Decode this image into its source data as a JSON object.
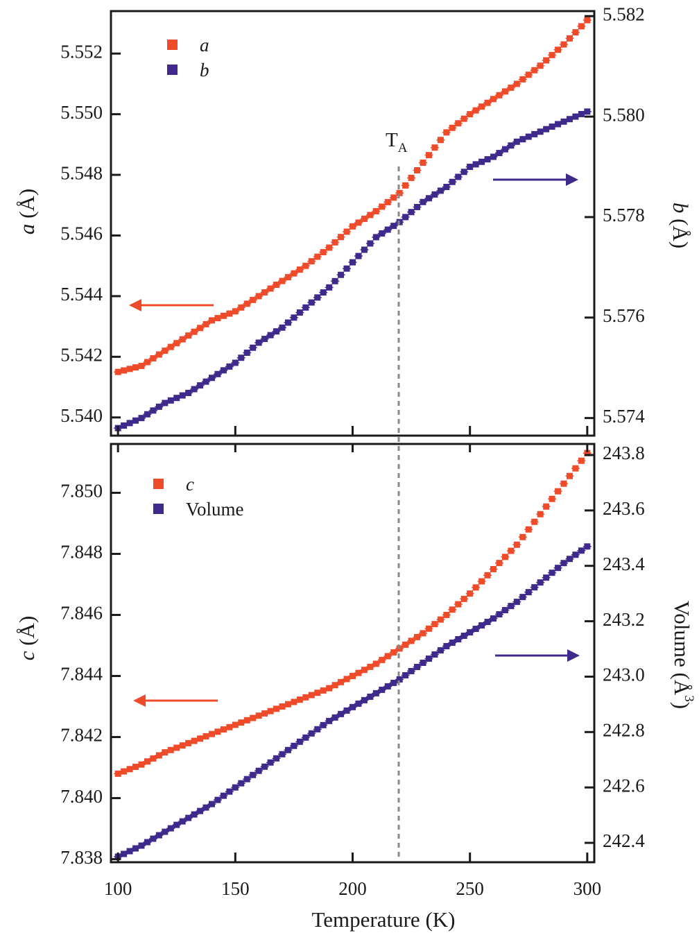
{
  "colors": {
    "a": "#ee4b2b",
    "b": "#3f2a8c",
    "frame": "#1a1a1a",
    "guide": "#888888"
  },
  "shared_x": {
    "label": "Temperature (K)",
    "range": [
      97,
      303
    ],
    "ticks": [
      100,
      150,
      200,
      250,
      300
    ],
    "tick_labels": [
      "100",
      "150",
      "200",
      "250",
      "300"
    ]
  },
  "transition": {
    "label_main": "T",
    "label_sub": "A",
    "x": 220
  },
  "chart_data": [
    {
      "type": "scatter",
      "panel": "top",
      "x": [
        100,
        110,
        120,
        130,
        140,
        150,
        160,
        170,
        180,
        190,
        200,
        210,
        220,
        230,
        240,
        250,
        260,
        270,
        280,
        290,
        300
      ],
      "series": [
        {
          "name": "a",
          "axis": "left",
          "values": [
            5.5415,
            5.5417,
            5.5422,
            5.5427,
            5.5432,
            5.5435,
            5.544,
            5.5445,
            5.545,
            5.5456,
            5.5463,
            5.5468,
            5.5474,
            5.5484,
            5.5494,
            5.55,
            5.5505,
            5.551,
            5.5516,
            5.5523,
            5.5531
          ]
        },
        {
          "name": "b",
          "axis": "right",
          "values": [
            5.5738,
            5.574,
            5.5743,
            5.5745,
            5.5748,
            5.5751,
            5.5755,
            5.5758,
            5.5762,
            5.5766,
            5.5771,
            5.5776,
            5.5779,
            5.5783,
            5.5786,
            5.579,
            5.5792,
            5.5795,
            5.5797,
            5.5799,
            5.5801
          ]
        }
      ],
      "ylabel_left": "a (Å)",
      "ylabel_right": "b (Å)",
      "ylim_left": [
        5.5394,
        5.5534
      ],
      "ylim_right": [
        5.57365,
        5.5821
      ],
      "yticks_left": [
        "5.540",
        "5.542",
        "5.544",
        "5.546",
        "5.548",
        "5.550",
        "5.552"
      ],
      "yticks_right": [
        "5.574",
        "5.576",
        "5.578",
        "5.580",
        "5.582"
      ],
      "legend": {
        "placement": "top-left",
        "entries": [
          "a",
          "b"
        ]
      }
    },
    {
      "type": "scatter",
      "panel": "bottom",
      "x": [
        100,
        110,
        120,
        130,
        140,
        150,
        160,
        170,
        180,
        190,
        200,
        210,
        220,
        230,
        240,
        250,
        260,
        270,
        280,
        290,
        300
      ],
      "series": [
        {
          "name": "c",
          "axis": "left",
          "values": [
            7.8408,
            7.8411,
            7.8415,
            7.8418,
            7.8421,
            7.8424,
            7.8427,
            7.843,
            7.8433,
            7.8436,
            7.844,
            7.8444,
            7.8449,
            7.8454,
            7.846,
            7.8467,
            7.8475,
            7.8483,
            7.8493,
            7.8503,
            7.8513
          ]
        },
        {
          "name": "Volume",
          "axis": "right",
          "values": [
            242.35,
            242.39,
            242.44,
            242.49,
            242.54,
            242.6,
            242.66,
            242.72,
            242.78,
            242.84,
            242.89,
            242.94,
            242.99,
            243.05,
            243.11,
            243.16,
            243.21,
            243.27,
            243.34,
            243.41,
            243.47
          ]
        }
      ],
      "ylabel_left": "c (Å)",
      "ylabel_right": "Volume (Å",
      "ylabel_right_sup": "3",
      "ylabel_right_close": ")",
      "ylim_left": [
        7.8379,
        7.8516
      ],
      "ylim_right": [
        242.33,
        243.84
      ],
      "yticks_left": [
        "7.838",
        "7.840",
        "7.842",
        "7.844",
        "7.846",
        "7.848",
        "7.850"
      ],
      "yticks_right": [
        "242.4",
        "242.6",
        "242.8",
        "243.0",
        "243.2",
        "243.4",
        "243.6",
        "243.8"
      ],
      "legend": {
        "placement": "top-left",
        "entries": [
          "c",
          "Volume"
        ]
      }
    }
  ]
}
